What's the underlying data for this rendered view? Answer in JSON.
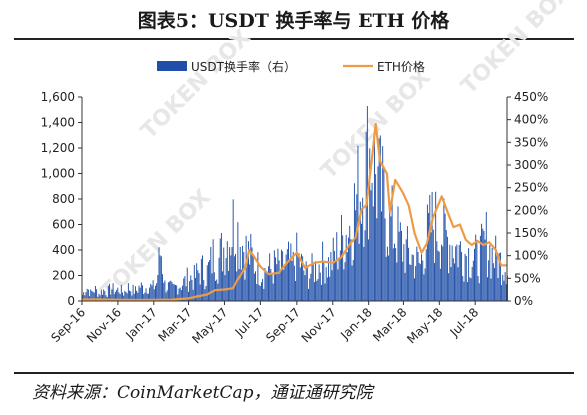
{
  "title": "图表5：USDT 换手率与 ETH 价格",
  "source": "资料来源：CoinMarketCap，通证通研究院",
  "watermark": "TOKEN BOX",
  "chart_data": {
    "type": "bar+line",
    "title": "图表5：USDT 换手率与 ETH 价格",
    "legend_position": "top",
    "grid": false,
    "x_tick_labels": [
      "Sep-16",
      "Nov-16",
      "Jan-17",
      "Mar-17",
      "May-17",
      "Jul-17",
      "Sep-17",
      "Nov-17",
      "Jan-18",
      "Mar-18",
      "May-18",
      "Jul-18"
    ],
    "x_tick_dates": [
      "2016-09-01",
      "2016-11-01",
      "2017-01-01",
      "2017-03-01",
      "2017-05-01",
      "2017-07-01",
      "2017-09-01",
      "2017-11-01",
      "2018-01-01",
      "2018-03-01",
      "2018-05-01",
      "2018-07-01"
    ],
    "x_range": [
      "2016-09-01",
      "2018-08-24"
    ],
    "left_axis": {
      "min": 0,
      "max": 1600,
      "ticks": [
        "0",
        "200",
        "400",
        "600",
        "800",
        "1,000",
        "1,200",
        "1,400",
        "1,600"
      ]
    },
    "right_axis": {
      "min": 0,
      "max": 450,
      "unit": "%",
      "ticks": [
        "0%",
        "50%",
        "100%",
        "150%",
        "200%",
        "250%",
        "300%",
        "350%",
        "400%",
        "450%"
      ]
    },
    "series": [
      {
        "name": "USDT换手率（右）",
        "kind": "bar",
        "axis": "right",
        "color": "#1f4fa8",
        "points": [
          [
            "2016-09-01",
            15
          ],
          [
            "2016-09-08",
            35
          ],
          [
            "2016-09-15",
            20
          ],
          [
            "2016-09-22",
            30
          ],
          [
            "2016-09-29",
            18
          ],
          [
            "2016-10-06",
            28
          ],
          [
            "2016-10-13",
            22
          ],
          [
            "2016-10-20",
            32
          ],
          [
            "2016-10-27",
            25
          ],
          [
            "2016-11-03",
            30
          ],
          [
            "2016-11-10",
            20
          ],
          [
            "2016-11-17",
            35
          ],
          [
            "2016-11-24",
            28
          ],
          [
            "2016-12-01",
            25
          ],
          [
            "2016-12-08",
            38
          ],
          [
            "2016-12-15",
            30
          ],
          [
            "2016-12-22",
            40
          ],
          [
            "2016-12-29",
            32
          ],
          [
            "2017-01-05",
            45
          ],
          [
            "2017-01-12",
            135
          ],
          [
            "2017-01-19",
            40
          ],
          [
            "2017-01-26",
            35
          ],
          [
            "2017-02-02",
            30
          ],
          [
            "2017-02-09",
            38
          ],
          [
            "2017-02-16",
            42
          ],
          [
            "2017-02-23",
            50
          ],
          [
            "2017-03-02",
            60
          ],
          [
            "2017-03-09",
            55
          ],
          [
            "2017-03-16",
            70
          ],
          [
            "2017-03-23",
            80
          ],
          [
            "2017-03-30",
            65
          ],
          [
            "2017-04-06",
            90
          ],
          [
            "2017-04-13",
            120
          ],
          [
            "2017-04-20",
            100
          ],
          [
            "2017-04-27",
            130
          ],
          [
            "2017-05-04",
            150
          ],
          [
            "2017-05-11",
            170
          ],
          [
            "2017-05-18",
            205
          ],
          [
            "2017-05-25",
            160
          ],
          [
            "2017-06-01",
            140
          ],
          [
            "2017-06-08",
            120
          ],
          [
            "2017-06-15",
            110
          ],
          [
            "2017-06-22",
            90
          ],
          [
            "2017-06-29",
            80
          ],
          [
            "2017-07-06",
            70
          ],
          [
            "2017-07-13",
            85
          ],
          [
            "2017-07-20",
            75
          ],
          [
            "2017-07-27",
            95
          ],
          [
            "2017-08-03",
            80
          ],
          [
            "2017-08-10",
            90
          ],
          [
            "2017-08-17",
            100
          ],
          [
            "2017-08-24",
            85
          ],
          [
            "2017-08-31",
            110
          ],
          [
            "2017-09-07",
            95
          ],
          [
            "2017-09-14",
            70
          ],
          [
            "2017-09-21",
            65
          ],
          [
            "2017-09-28",
            80
          ],
          [
            "2017-10-05",
            85
          ],
          [
            "2017-10-12",
            95
          ],
          [
            "2017-10-19",
            100
          ],
          [
            "2017-10-26",
            90
          ],
          [
            "2017-11-02",
            110
          ],
          [
            "2017-11-09",
            130
          ],
          [
            "2017-11-16",
            150
          ],
          [
            "2017-11-23",
            170
          ],
          [
            "2017-11-30",
            190
          ],
          [
            "2017-12-07",
            230
          ],
          [
            "2017-12-14",
            270
          ],
          [
            "2017-12-21",
            300
          ],
          [
            "2017-12-28",
            340
          ],
          [
            "2018-01-04",
            380
          ],
          [
            "2018-01-11",
            330
          ],
          [
            "2018-01-18",
            280
          ],
          [
            "2018-01-25",
            250
          ],
          [
            "2018-02-01",
            210
          ],
          [
            "2018-02-08",
            190
          ],
          [
            "2018-02-15",
            170
          ],
          [
            "2018-02-22",
            150
          ],
          [
            "2018-03-01",
            130
          ],
          [
            "2018-03-08",
            120
          ],
          [
            "2018-03-15",
            110
          ],
          [
            "2018-03-22",
            100
          ],
          [
            "2018-03-29",
            90
          ],
          [
            "2018-04-05",
            140
          ],
          [
            "2018-04-12",
            170
          ],
          [
            "2018-04-19",
            195
          ],
          [
            "2018-04-26",
            185
          ],
          [
            "2018-05-03",
            175
          ],
          [
            "2018-05-10",
            160
          ],
          [
            "2018-05-17",
            150
          ],
          [
            "2018-05-24",
            140
          ],
          [
            "2018-05-31",
            130
          ],
          [
            "2018-06-07",
            125
          ],
          [
            "2018-06-14",
            120
          ],
          [
            "2018-06-21",
            115
          ],
          [
            "2018-06-28",
            110
          ],
          [
            "2018-07-05",
            105
          ],
          [
            "2018-07-12",
            125
          ],
          [
            "2018-07-19",
            150
          ],
          [
            "2018-07-26",
            120
          ],
          [
            "2018-08-02",
            110
          ],
          [
            "2018-08-09",
            100
          ],
          [
            "2018-08-16",
            95
          ],
          [
            "2018-08-23",
            90
          ]
        ]
      },
      {
        "name": "ETH价格",
        "kind": "line",
        "axis": "left",
        "color": "#ed9b45",
        "points": [
          [
            "2016-09-01",
            12
          ],
          [
            "2016-10-01",
            12
          ],
          [
            "2016-11-01",
            10
          ],
          [
            "2016-12-01",
            8
          ],
          [
            "2017-01-01",
            9
          ],
          [
            "2017-02-01",
            11
          ],
          [
            "2017-03-01",
            20
          ],
          [
            "2017-03-15",
            35
          ],
          [
            "2017-04-01",
            50
          ],
          [
            "2017-04-15",
            85
          ],
          [
            "2017-05-01",
            90
          ],
          [
            "2017-05-15",
            100
          ],
          [
            "2017-05-25",
            180
          ],
          [
            "2017-06-05",
            260
          ],
          [
            "2017-06-12",
            400
          ],
          [
            "2017-06-20",
            350
          ],
          [
            "2017-07-01",
            270
          ],
          [
            "2017-07-15",
            210
          ],
          [
            "2017-08-01",
            220
          ],
          [
            "2017-08-15",
            300
          ],
          [
            "2017-09-01",
            380
          ],
          [
            "2017-09-15",
            260
          ],
          [
            "2017-10-01",
            300
          ],
          [
            "2017-10-15",
            310
          ],
          [
            "2017-11-01",
            300
          ],
          [
            "2017-11-15",
            340
          ],
          [
            "2017-12-01",
            450
          ],
          [
            "2017-12-10",
            500
          ],
          [
            "2017-12-20",
            720
          ],
          [
            "2017-12-28",
            750
          ],
          [
            "2018-01-05",
            1050
          ],
          [
            "2018-01-13",
            1390
          ],
          [
            "2018-01-20",
            1100
          ],
          [
            "2018-02-01",
            1000
          ],
          [
            "2018-02-06",
            700
          ],
          [
            "2018-02-15",
            950
          ],
          [
            "2018-02-28",
            850
          ],
          [
            "2018-03-10",
            750
          ],
          [
            "2018-03-20",
            530
          ],
          [
            "2018-04-01",
            380
          ],
          [
            "2018-04-10",
            450
          ],
          [
            "2018-04-20",
            650
          ],
          [
            "2018-05-05",
            820
          ],
          [
            "2018-05-15",
            700
          ],
          [
            "2018-05-25",
            580
          ],
          [
            "2018-06-05",
            600
          ],
          [
            "2018-06-15",
            480
          ],
          [
            "2018-06-25",
            440
          ],
          [
            "2018-07-05",
            470
          ],
          [
            "2018-07-15",
            440
          ],
          [
            "2018-07-25",
            460
          ],
          [
            "2018-08-05",
            400
          ],
          [
            "2018-08-14",
            280
          ],
          [
            "2018-08-24",
            280
          ]
        ]
      }
    ]
  }
}
